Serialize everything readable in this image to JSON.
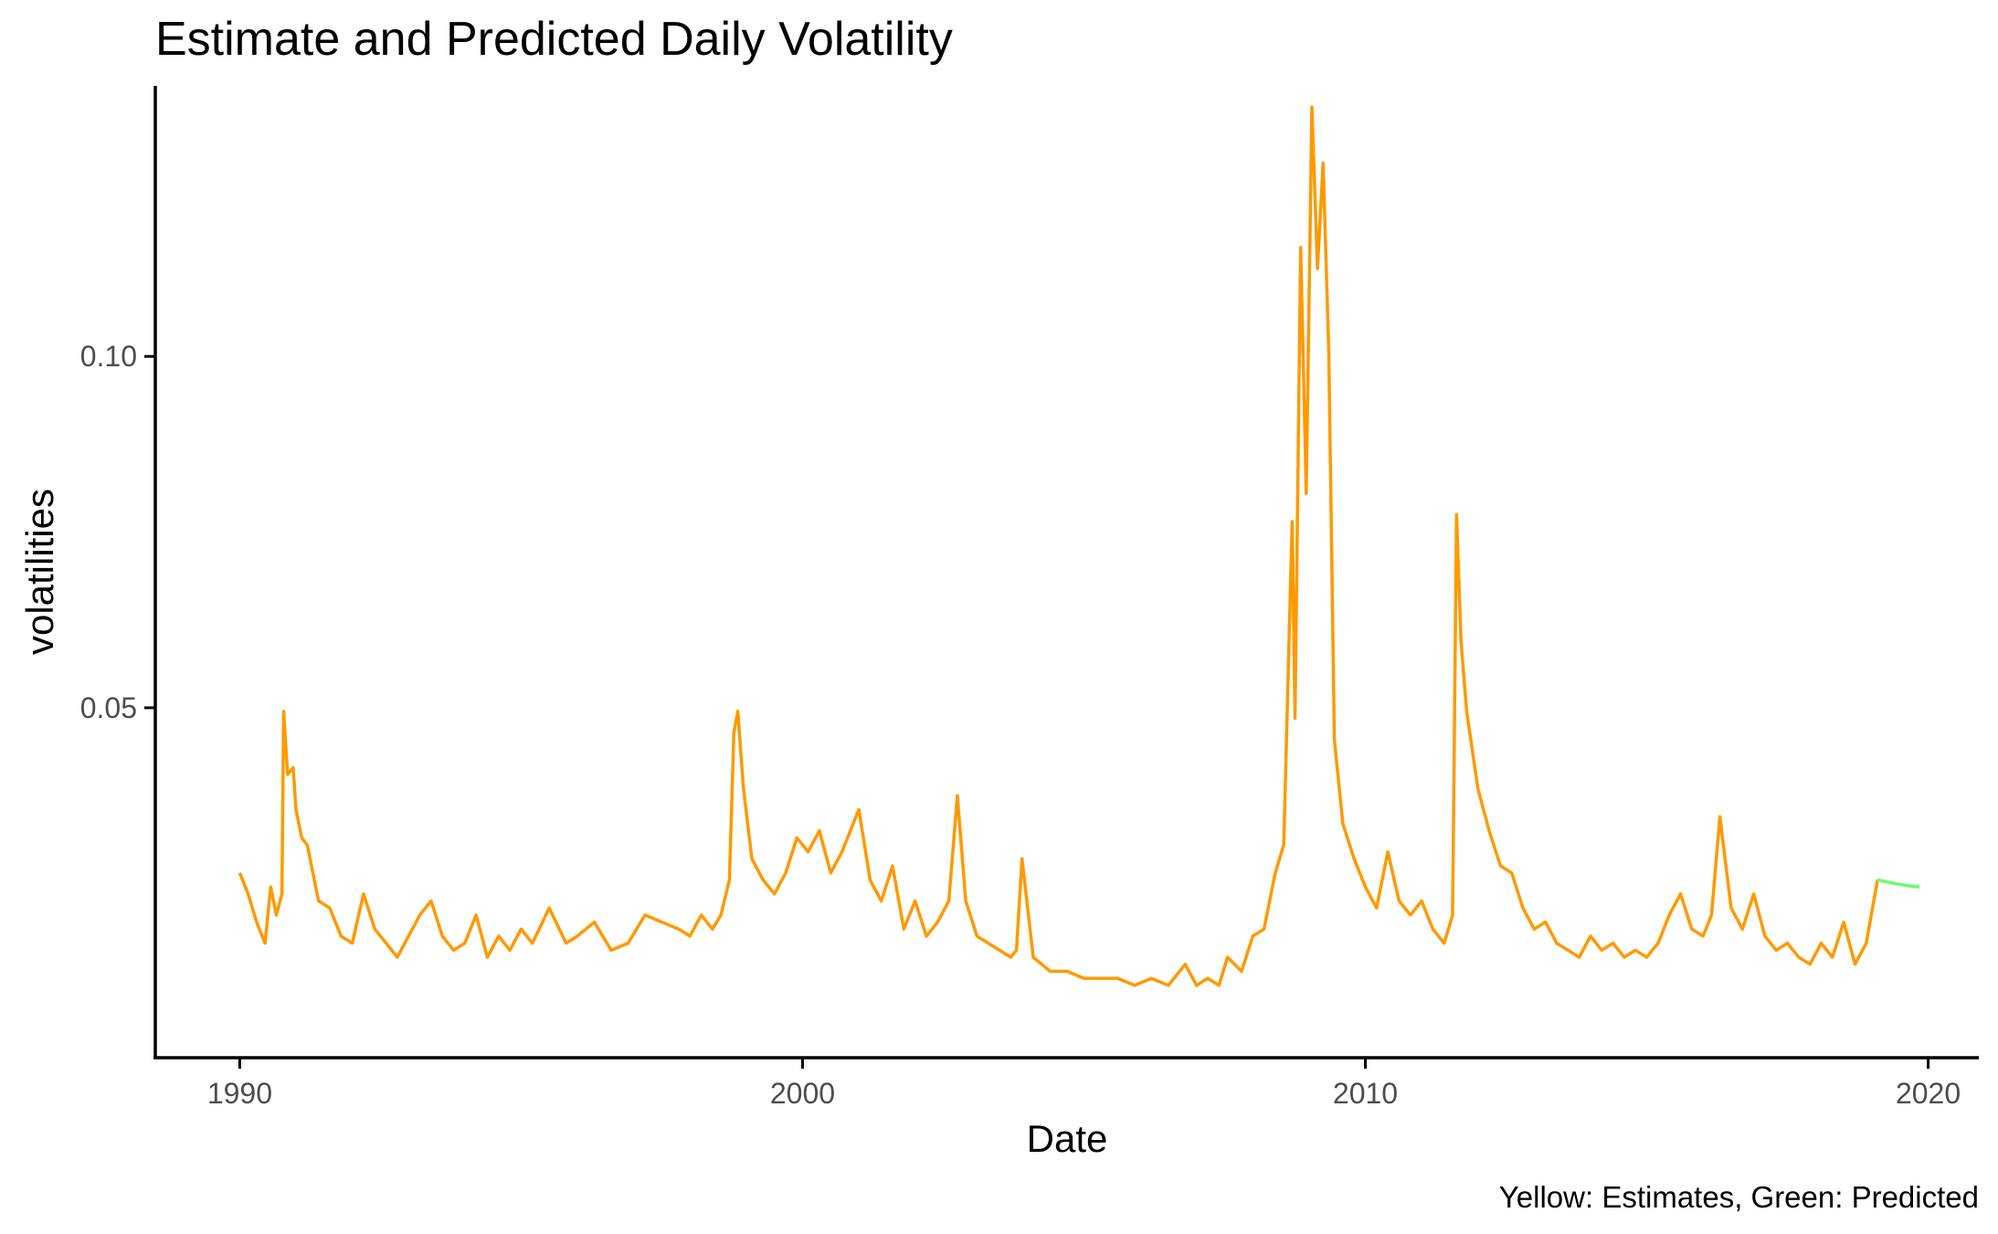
{
  "chart_data": {
    "type": "line",
    "title": "Estimate and Predicted Daily Volatility",
    "xlabel": "Date",
    "ylabel": "volatilities",
    "caption": "Yellow: Estimates, Green: Predicted",
    "xlim": [
      1988.5,
      2020.9
    ],
    "ylim": [
      0.0002,
      0.1385
    ],
    "x_ticks": [
      {
        "value": 1990,
        "label": "1990"
      },
      {
        "value": 2000,
        "label": "2000"
      },
      {
        "value": 2010,
        "label": "2010"
      },
      {
        "value": 2020,
        "label": "2020"
      }
    ],
    "y_ticks": [
      {
        "value": 0.05,
        "label": "0.05"
      },
      {
        "value": 0.1,
        "label": "0.10"
      }
    ],
    "grid": false,
    "legend": "none",
    "series": [
      {
        "color": "#FF9900",
        "x": [
          1990.0,
          1990.15,
          1990.3,
          1990.45,
          1990.55,
          1990.65,
          1990.75,
          1990.78,
          1990.85,
          1990.95,
          1991.0,
          1991.1,
          1991.2,
          1991.3,
          1991.4,
          1991.6,
          1991.8,
          1992.0,
          1992.2,
          1992.4,
          1992.6,
          1992.8,
          1993.0,
          1993.2,
          1993.4,
          1993.6,
          1993.8,
          1994.0,
          1994.2,
          1994.4,
          1994.6,
          1994.8,
          1995.0,
          1995.2,
          1995.5,
          1995.8,
          1996.0,
          1996.3,
          1996.6,
          1996.9,
          1997.2,
          1997.5,
          1997.8,
          1998.0,
          1998.2,
          1998.4,
          1998.55,
          1998.7,
          1998.78,
          1998.85,
          1998.95,
          1999.1,
          1999.3,
          1999.5,
          1999.7,
          1999.9,
          2000.1,
          2000.3,
          2000.5,
          2000.7,
          2000.9,
          2001.0,
          2001.2,
          2001.4,
          2001.6,
          2001.8,
          2002.0,
          2002.2,
          2002.4,
          2002.6,
          2002.75,
          2002.9,
          2003.1,
          2003.3,
          2003.5,
          2003.7,
          2003.8,
          2003.9,
          2004.1,
          2004.4,
          2004.7,
          2005.0,
          2005.3,
          2005.6,
          2005.9,
          2006.2,
          2006.5,
          2006.8,
          2007.0,
          2007.2,
          2007.4,
          2007.55,
          2007.8,
          2008.0,
          2008.2,
          2008.4,
          2008.55,
          2008.7,
          2008.75,
          2008.85,
          2008.95,
          2009.05,
          2009.15,
          2009.25,
          2009.35,
          2009.45,
          2009.6,
          2009.8,
          2010.0,
          2010.2,
          2010.4,
          2010.6,
          2010.8,
          2011.0,
          2011.2,
          2011.4,
          2011.55,
          2011.62,
          2011.7,
          2011.8,
          2012.0,
          2012.2,
          2012.4,
          2012.6,
          2012.8,
          2013.0,
          2013.2,
          2013.4,
          2013.6,
          2013.8,
          2014.0,
          2014.2,
          2014.4,
          2014.6,
          2014.8,
          2015.0,
          2015.2,
          2015.4,
          2015.6,
          2015.8,
          2016.0,
          2016.15,
          2016.3,
          2016.5,
          2016.7,
          2016.9,
          2017.1,
          2017.3,
          2017.5,
          2017.7,
          2017.9,
          2018.1,
          2018.3,
          2018.5,
          2018.7,
          2018.9,
          2019.1
        ],
        "values": [
          0.0265,
          0.0235,
          0.0195,
          0.0165,
          0.0245,
          0.0205,
          0.0235,
          0.0495,
          0.0405,
          0.0415,
          0.0355,
          0.0315,
          0.0305,
          0.0265,
          0.0225,
          0.0215,
          0.0175,
          0.0165,
          0.0235,
          0.0185,
          0.0165,
          0.0145,
          0.0175,
          0.0205,
          0.0225,
          0.0175,
          0.0155,
          0.0165,
          0.0205,
          0.0145,
          0.0175,
          0.0155,
          0.0185,
          0.0165,
          0.0215,
          0.0165,
          0.0175,
          0.0195,
          0.0155,
          0.0165,
          0.0205,
          0.0195,
          0.0185,
          0.0175,
          0.0205,
          0.0185,
          0.0205,
          0.0255,
          0.0465,
          0.0495,
          0.0385,
          0.0285,
          0.0255,
          0.0235,
          0.0265,
          0.0315,
          0.0295,
          0.0325,
          0.0265,
          0.0295,
          0.0335,
          0.0355,
          0.0255,
          0.0225,
          0.0275,
          0.0185,
          0.0225,
          0.0175,
          0.0195,
          0.0225,
          0.0375,
          0.0225,
          0.0175,
          0.0165,
          0.0155,
          0.0145,
          0.0155,
          0.0285,
          0.0145,
          0.0125,
          0.0125,
          0.0115,
          0.0115,
          0.0115,
          0.0105,
          0.0115,
          0.0105,
          0.0135,
          0.0105,
          0.0115,
          0.0105,
          0.0145,
          0.0125,
          0.0175,
          0.0185,
          0.0265,
          0.0305,
          0.0765,
          0.0485,
          0.1155,
          0.0805,
          0.1355,
          0.1125,
          0.1275,
          0.1005,
          0.0455,
          0.0335,
          0.0285,
          0.0245,
          0.0215,
          0.0295,
          0.0225,
          0.0205,
          0.0225,
          0.0185,
          0.0165,
          0.0205,
          0.0775,
          0.0595,
          0.0495,
          0.0385,
          0.0325,
          0.0275,
          0.0265,
          0.0215,
          0.0185,
          0.0195,
          0.0165,
          0.0155,
          0.0145,
          0.0175,
          0.0155,
          0.0165,
          0.0145,
          0.0155,
          0.0145,
          0.0165,
          0.0205,
          0.0235,
          0.0185,
          0.0175,
          0.0205,
          0.0345,
          0.0215,
          0.0185,
          0.0235,
          0.0175,
          0.0155,
          0.0165,
          0.0145,
          0.0135,
          0.0165,
          0.0145,
          0.0195,
          0.0135,
          0.0165,
          0.0255
        ]
      },
      {
        "color": "#66FF66",
        "x": [
          2019.1,
          2019.4,
          2019.7,
          2019.85
        ],
        "values": [
          0.0255,
          0.025,
          0.0246,
          0.0245
        ]
      }
    ]
  }
}
